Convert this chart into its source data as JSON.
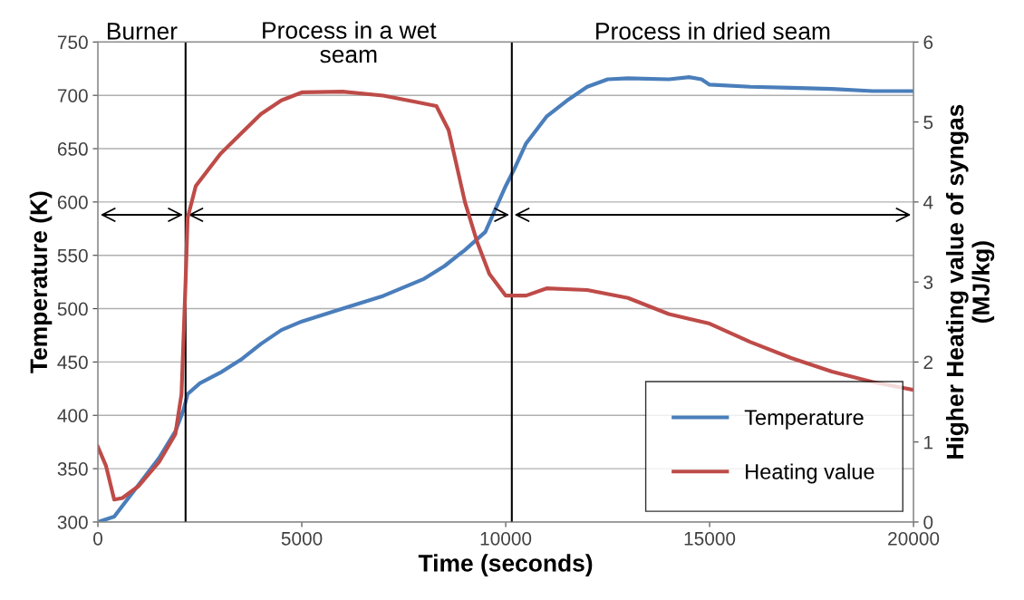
{
  "chart_data": {
    "type": "line",
    "xlabel": "Time (seconds)",
    "ylabel": "Temperature (K)",
    "y2label": "Higher Heating value of syngas\n(MJ/kg)",
    "xlim": [
      0,
      20000
    ],
    "xticks": [
      0,
      5000,
      10000,
      15000,
      20000
    ],
    "ylim": [
      300,
      750
    ],
    "yticks": [
      300,
      350,
      400,
      450,
      500,
      550,
      600,
      650,
      700,
      750
    ],
    "y2lim": [
      0,
      6
    ],
    "y2ticks": [
      0,
      1,
      2,
      3,
      4,
      5,
      6
    ],
    "grid": "y",
    "legend": "bottom right",
    "line_style": "solid",
    "marker": "none",
    "series": [
      {
        "name": "Temperature",
        "color": "#4a7ebb",
        "x": [
          0,
          400,
          1000,
          1500,
          1900,
          2100,
          2200,
          2500,
          3000,
          3500,
          4000,
          4500,
          5000,
          6000,
          7000,
          8000,
          8500,
          9000,
          9500,
          10000,
          10200,
          10500,
          11000,
          11500,
          12000,
          12500,
          13000,
          14000,
          14500,
          14800,
          15000,
          16000,
          17000,
          18000,
          19000,
          20000
        ],
        "values": [
          300,
          305,
          335,
          360,
          385,
          405,
          420,
          430,
          440,
          452,
          467,
          480,
          488,
          500,
          512,
          528,
          540,
          555,
          572,
          615,
          630,
          655,
          680,
          695,
          708,
          715,
          716,
          715,
          717,
          715,
          710,
          708,
          707,
          706,
          704,
          704
        ]
      },
      {
        "name": "Heating value",
        "color": "#be4b48",
        "axis": "y2",
        "x": [
          0,
          200,
          400,
          600,
          1000,
          1500,
          1900,
          2050,
          2150,
          2200,
          2400,
          3000,
          3500,
          4000,
          4500,
          5000,
          6000,
          7000,
          7800,
          8300,
          8600,
          9000,
          9300,
          9600,
          10000,
          10500,
          11000,
          12000,
          13000,
          14000,
          15000,
          16000,
          17000,
          18000,
          19000,
          20000
        ],
        "values": [
          0.94,
          0.7,
          0.28,
          0.3,
          0.45,
          0.75,
          1.1,
          1.6,
          3.0,
          3.8,
          4.2,
          4.6,
          4.85,
          5.1,
          5.27,
          5.37,
          5.38,
          5.33,
          5.25,
          5.2,
          4.9,
          4.0,
          3.5,
          3.1,
          2.83,
          2.83,
          2.92,
          2.9,
          2.8,
          2.6,
          2.48,
          2.25,
          2.05,
          1.88,
          1.75,
          1.65
        ]
      }
    ],
    "ref_lines": [
      {
        "axis": "x",
        "value": 2150,
        "color": "#000000"
      },
      {
        "axis": "x",
        "value": 10150,
        "color": "#000000"
      }
    ],
    "annotations": [
      "Burner",
      "Process in a wet\nseam",
      "Process in dried seam"
    ]
  }
}
